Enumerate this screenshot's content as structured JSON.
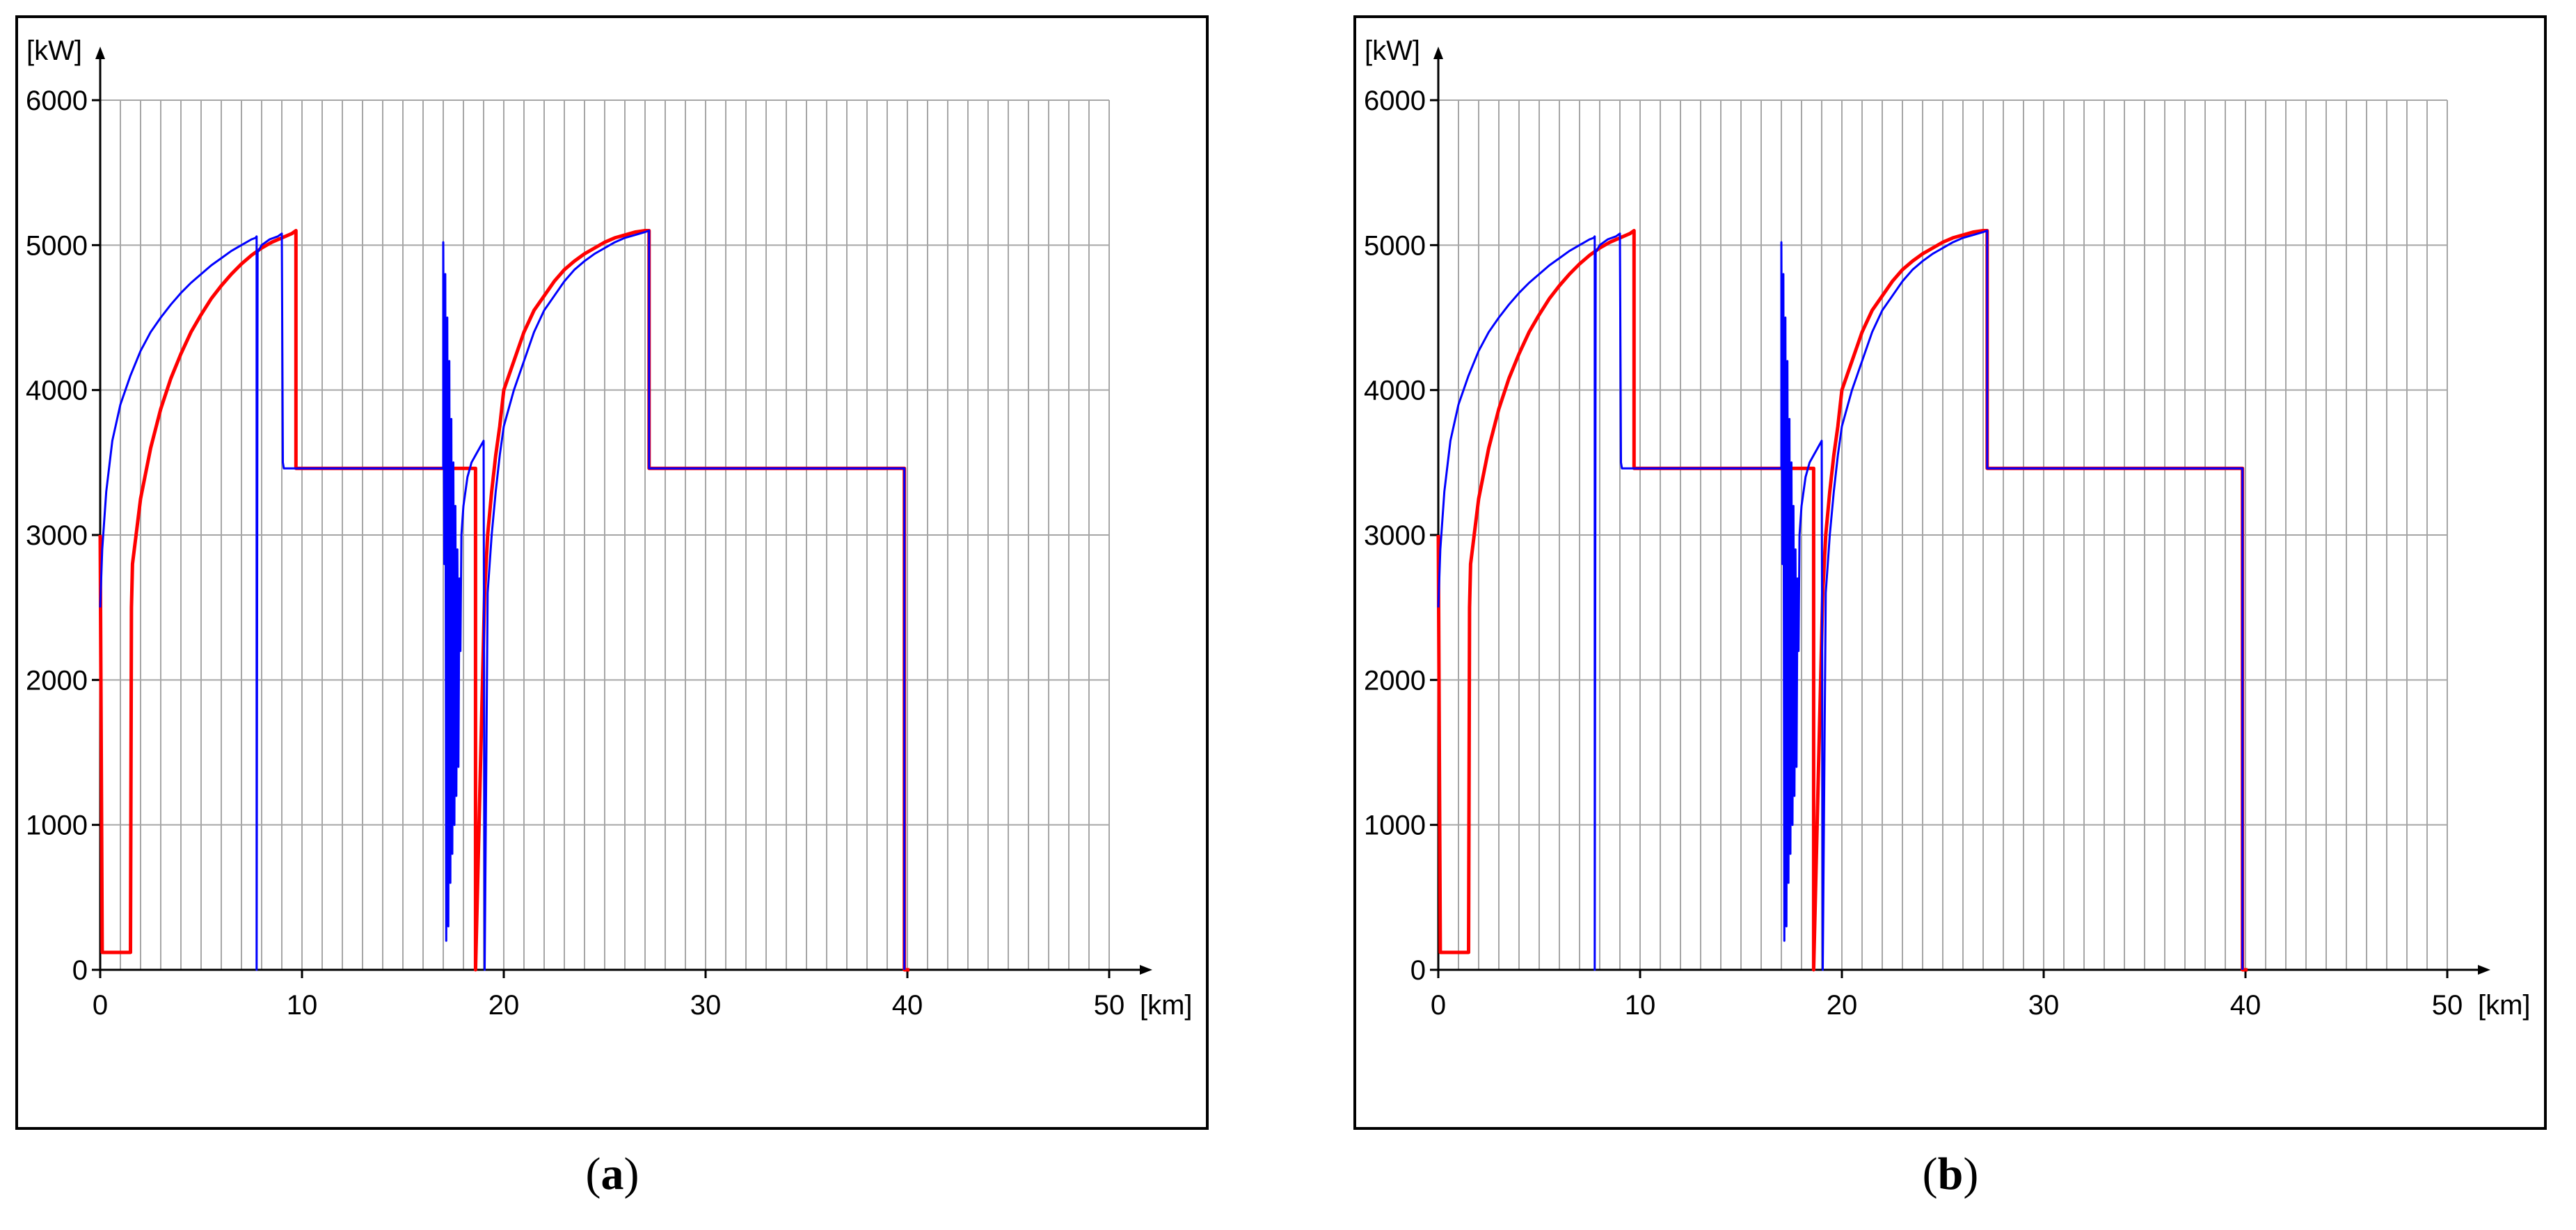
{
  "colors": {
    "blue": "#0000ff",
    "red": "#ff0000",
    "grid": "#a6a6a6"
  },
  "chart_data": [
    {
      "type": "line",
      "title": "",
      "panel_label": "a",
      "ylabel": "[kW]",
      "xlabel": "[km]",
      "xlim": [
        0,
        50
      ],
      "ylim": [
        0,
        6000
      ],
      "x_ticks": [
        "0",
        "10",
        "20",
        "30",
        "40",
        "50"
      ],
      "y_ticks": [
        "0",
        "1000",
        "2000",
        "3000",
        "4000",
        "5000",
        "6000"
      ],
      "x_minor_step": 1,
      "series": [
        {
          "color": "#0000ff",
          "style": "solid",
          "x": [
            0.0,
            0.1,
            0.3,
            0.6,
            1.0,
            1.5,
            2.0,
            2.5,
            3.0,
            3.5,
            4.0,
            4.5,
            5.0,
            5.5,
            6.0,
            6.5,
            7.0,
            7.5,
            7.6,
            7.7,
            7.75,
            7.75,
            7.8,
            8.0,
            8.4,
            8.8,
            9.0,
            9.05,
            9.1,
            9.2,
            12.0,
            15.0,
            17.0,
            17.0,
            17.05,
            17.1,
            17.15,
            17.2,
            17.25,
            17.3,
            17.35,
            17.4,
            17.45,
            17.5,
            17.55,
            17.6,
            17.65,
            17.7,
            17.75,
            17.8,
            17.85,
            17.9,
            18.0,
            18.2,
            18.4,
            18.6,
            18.8,
            19.0,
            19.05,
            19.2,
            19.4,
            19.6,
            19.8,
            20.0,
            20.5,
            21.0,
            21.5,
            22.0,
            22.5,
            23.0,
            23.5,
            24.0,
            24.5,
            25.0,
            25.5,
            26.0,
            26.5,
            27.0,
            27.2,
            27.2,
            27.3,
            30.0,
            35.0,
            39.85,
            39.85
          ],
          "y": [
            2500,
            2900,
            3300,
            3650,
            3900,
            4100,
            4270,
            4400,
            4500,
            4590,
            4670,
            4740,
            4800,
            4860,
            4910,
            4960,
            5000,
            5040,
            5045,
            5050,
            5060,
            0,
            4950,
            5000,
            5040,
            5060,
            5080,
            3500,
            3460,
            3460,
            3460,
            3460,
            3460,
            5020,
            2800,
            4800,
            200,
            4500,
            300,
            4200,
            600,
            3800,
            800,
            3500,
            1000,
            3200,
            1200,
            2900,
            1400,
            2700,
            2200,
            3000,
            3200,
            3400,
            3500,
            3550,
            3600,
            3650,
            0,
            2600,
            3000,
            3300,
            3550,
            3750,
            4000,
            4200,
            4400,
            4550,
            4650,
            4750,
            4830,
            4890,
            4940,
            4980,
            5020,
            5050,
            5070,
            5090,
            5100,
            3460,
            3460,
            3460,
            3460,
            3460,
            0
          ]
        },
        {
          "color": "#ff0000",
          "style": "solid",
          "x": [
            0.0,
            0.1,
            0.2,
            1.5,
            1.55,
            1.6,
            2.0,
            2.5,
            3.0,
            3.5,
            4.0,
            4.5,
            5.0,
            5.5,
            6.0,
            6.5,
            7.0,
            7.5,
            8.0,
            8.5,
            9.0,
            9.5,
            9.7,
            9.7,
            9.8,
            12.0,
            15.0,
            17.0,
            18.0,
            18.6,
            18.6,
            19.05,
            19.2,
            19.4,
            19.6,
            19.8,
            20.0,
            20.5,
            21.0,
            21.5,
            22.0,
            22.5,
            23.0,
            23.5,
            24.0,
            24.5,
            25.0,
            25.5,
            26.0,
            26.5,
            27.0,
            27.2,
            27.2,
            27.3,
            30.0,
            35.0,
            39.85,
            39.85,
            40.1
          ],
          "y": [
            3000,
            120,
            120,
            120,
            2500,
            2800,
            3250,
            3600,
            3870,
            4080,
            4250,
            4400,
            4520,
            4630,
            4720,
            4800,
            4870,
            4930,
            4980,
            5020,
            5050,
            5080,
            5100,
            3460,
            3460,
            3460,
            3460,
            3460,
            3460,
            3460,
            0,
            2600,
            3000,
            3300,
            3550,
            3750,
            4000,
            4200,
            4400,
            4550,
            4650,
            4750,
            4830,
            4890,
            4940,
            4980,
            5020,
            5050,
            5070,
            5090,
            5100,
            5100,
            3460,
            3460,
            3460,
            3460,
            3460,
            0,
            0
          ]
        }
      ]
    },
    {
      "type": "line",
      "title": "",
      "panel_label": "b",
      "ylabel": "[kW]",
      "xlabel": "[km]",
      "xlim": [
        0,
        50
      ],
      "ylim": [
        0,
        6000
      ],
      "x_ticks": [
        "0",
        "10",
        "20",
        "30",
        "40",
        "50"
      ],
      "y_ticks": [
        "0",
        "1000",
        "2000",
        "3000",
        "4000",
        "5000",
        "6000"
      ],
      "x_minor_step": 1,
      "series": [
        {
          "color": "#0000ff",
          "style": "solid",
          "x": [
            0.0,
            0.1,
            0.3,
            0.6,
            1.0,
            1.5,
            2.0,
            2.5,
            3.0,
            3.5,
            4.0,
            4.5,
            5.0,
            5.5,
            6.0,
            6.5,
            7.0,
            7.5,
            7.6,
            7.7,
            7.75,
            7.75,
            7.8,
            8.0,
            8.4,
            8.8,
            9.0,
            9.05,
            9.1,
            9.2,
            12.0,
            15.0,
            17.0,
            17.0,
            17.05,
            17.1,
            17.15,
            17.2,
            17.25,
            17.3,
            17.35,
            17.4,
            17.45,
            17.5,
            17.55,
            17.6,
            17.65,
            17.7,
            17.75,
            17.8,
            17.85,
            17.9,
            18.0,
            18.2,
            18.4,
            18.6,
            18.8,
            19.0,
            19.05,
            19.2,
            19.4,
            19.6,
            19.8,
            20.0,
            20.5,
            21.0,
            21.5,
            22.0,
            22.5,
            23.0,
            23.5,
            24.0,
            24.5,
            25.0,
            25.5,
            26.0,
            26.5,
            27.0,
            27.2,
            27.2,
            27.3,
            30.0,
            35.0,
            39.85,
            39.85
          ],
          "y": [
            2500,
            2900,
            3300,
            3650,
            3900,
            4100,
            4270,
            4400,
            4500,
            4590,
            4670,
            4740,
            4800,
            4860,
            4910,
            4960,
            5000,
            5040,
            5045,
            5050,
            5060,
            0,
            4950,
            5000,
            5040,
            5060,
            5080,
            3500,
            3460,
            3460,
            3460,
            3460,
            3460,
            5020,
            2800,
            4800,
            200,
            4500,
            300,
            4200,
            600,
            3800,
            800,
            3500,
            1000,
            3200,
            1200,
            2900,
            1400,
            2700,
            2200,
            3000,
            3200,
            3400,
            3500,
            3550,
            3600,
            3650,
            0,
            2600,
            3000,
            3300,
            3550,
            3750,
            4000,
            4200,
            4400,
            4550,
            4650,
            4750,
            4830,
            4890,
            4940,
            4980,
            5020,
            5050,
            5070,
            5090,
            5100,
            3460,
            3460,
            3460,
            3460,
            3460,
            0
          ]
        },
        {
          "color": "#ff0000",
          "style": "solid",
          "x": [
            0.0,
            0.1,
            0.2,
            1.5,
            1.55,
            1.6,
            2.0,
            2.5,
            3.0,
            3.5,
            4.0,
            4.5,
            5.0,
            5.5,
            6.0,
            6.5,
            7.0,
            7.5,
            8.0,
            8.5,
            9.0,
            9.5,
            9.7,
            9.7,
            9.8,
            12.0,
            15.0,
            17.0,
            18.0,
            18.6,
            18.6,
            19.05,
            19.2,
            19.4,
            19.6,
            19.8,
            20.0,
            20.5,
            21.0,
            21.5,
            22.0,
            22.5,
            23.0,
            23.5,
            24.0,
            24.5,
            25.0,
            25.5,
            26.0,
            26.5,
            27.0,
            27.2,
            27.2,
            27.3,
            30.0,
            35.0,
            39.85,
            39.85,
            40.1
          ],
          "y": [
            3000,
            120,
            120,
            120,
            2500,
            2800,
            3250,
            3600,
            3870,
            4080,
            4250,
            4400,
            4520,
            4630,
            4720,
            4800,
            4870,
            4930,
            4980,
            5020,
            5050,
            5080,
            5100,
            3460,
            3460,
            3460,
            3460,
            3460,
            3460,
            3460,
            0,
            2600,
            3000,
            3300,
            3550,
            3750,
            4000,
            4200,
            4400,
            4550,
            4650,
            4750,
            4830,
            4890,
            4940,
            4980,
            5020,
            5050,
            5070,
            5090,
            5100,
            5100,
            3460,
            3460,
            3460,
            3460,
            3460,
            0,
            0
          ]
        }
      ]
    }
  ]
}
